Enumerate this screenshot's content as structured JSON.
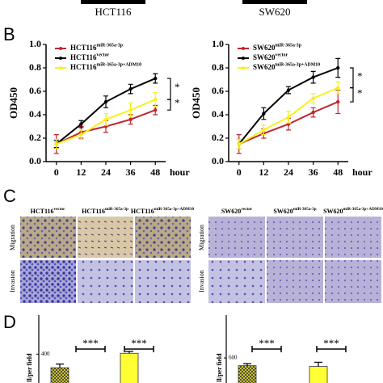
{
  "header": {
    "left": "HCT116",
    "right": "SW620"
  },
  "panel_labels": [
    "B",
    "C",
    "D"
  ],
  "microscopy": {
    "rows": [
      "Migration",
      "Invasion"
    ],
    "left": [
      {
        "text": "HCT116",
        "sup": "vector"
      },
      {
        "text": "HCT116",
        "sup": "miR-365a-3p"
      },
      {
        "text": "HCT116",
        "sup": "miR-365a-3p+ADM10"
      }
    ],
    "right": [
      {
        "text": "SW620",
        "sup": "vector"
      },
      {
        "text": "SW620",
        "sup": "miR-365a-3p"
      },
      {
        "text": "SW620",
        "sup": "miR-365a-3p+ADM10"
      }
    ]
  },
  "chart_data": [
    {
      "type": "line",
      "xlabel": "hour",
      "ylabel": "OD450",
      "x": [
        0,
        12,
        24,
        36,
        48
      ],
      "xlim": [
        -5,
        53
      ],
      "ylim": [
        0,
        1
      ],
      "yticks": [
        {
          "value": 0,
          "label": "0.0"
        },
        0.2,
        0.4,
        0.6,
        0.8,
        {
          "value": 1,
          "label": "1.0"
        }
      ],
      "annotations": [
        "*",
        "*"
      ],
      "series": [
        {
          "name": "HCT116",
          "sup": "miR-365a-3p",
          "color": "#c0262d",
          "values": [
            0.15,
            0.25,
            0.3,
            0.36,
            0.44
          ],
          "errors": [
            0.08,
            0.05,
            0.05,
            0.04,
            0.04
          ]
        },
        {
          "name": "HCT116",
          "sup": "vector",
          "color": "#000000",
          "values": [
            0.15,
            0.32,
            0.51,
            0.62,
            0.71
          ],
          "errors": [
            0.03,
            0.03,
            0.05,
            0.04,
            0.04
          ]
        },
        {
          "name": "HCT116",
          "sup": "miR-365a-3p+ADM10",
          "color": "#f7f21d",
          "values": [
            0.15,
            0.23,
            0.36,
            0.44,
            0.53
          ],
          "errors": [
            0.04,
            0.04,
            0.05,
            0.06,
            0.06
          ]
        }
      ]
    },
    {
      "type": "line",
      "xlabel": "hour",
      "ylabel": "OD450",
      "x": [
        0,
        12,
        24,
        36,
        48
      ],
      "xlim": [
        -5,
        53
      ],
      "ylim": [
        0,
        1
      ],
      "yticks": [
        {
          "value": 0,
          "label": "0.0"
        },
        0.2,
        0.4,
        0.6,
        0.8,
        {
          "value": 1,
          "label": "1.0"
        }
      ],
      "annotations": [
        "*",
        "*"
      ],
      "series": [
        {
          "name": "SW620",
          "sup": "miR-365a-3p",
          "color": "#c0262d",
          "values": [
            0.15,
            0.24,
            0.32,
            0.42,
            0.51
          ],
          "errors": [
            0.08,
            0.04,
            0.05,
            0.04,
            0.1
          ]
        },
        {
          "name": "SW620",
          "sup": "vector",
          "color": "#000000",
          "values": [
            0.15,
            0.41,
            0.61,
            0.72,
            0.8
          ],
          "errors": [
            0.04,
            0.05,
            0.03,
            0.05,
            0.08
          ]
        },
        {
          "name": "SW620",
          "sup": "miR-365a-3p+ADM10",
          "color": "#f7f21d",
          "values": [
            0.15,
            0.27,
            0.38,
            0.54,
            0.63
          ],
          "errors": [
            0.04,
            0.04,
            0.05,
            0.04,
            0.05
          ]
        }
      ]
    },
    {
      "type": "bar",
      "ylabel": "ll/per field",
      "categories": [
        null,
        null
      ],
      "values": [
        320,
        405
      ],
      "errors": [
        22,
        12
      ],
      "colors": [
        "#e8e030",
        "#ffff33"
      ],
      "hatched": [
        true,
        false
      ],
      "ylim": [
        230,
        630
      ],
      "yticks": [
        400
      ],
      "annotations": [
        "***",
        "***"
      ]
    },
    {
      "type": "bar",
      "ylabel": "ll/per field",
      "categories": [
        null,
        null
      ],
      "values": [
        555,
        550
      ],
      "errors": [
        12,
        25
      ],
      "colors": [
        "#e8e030",
        "#ffff33"
      ],
      "hatched": [
        true,
        false
      ],
      "ylim": [
        454,
        850
      ],
      "yticks": [
        600
      ],
      "annotations": [
        "***",
        "***"
      ]
    }
  ]
}
